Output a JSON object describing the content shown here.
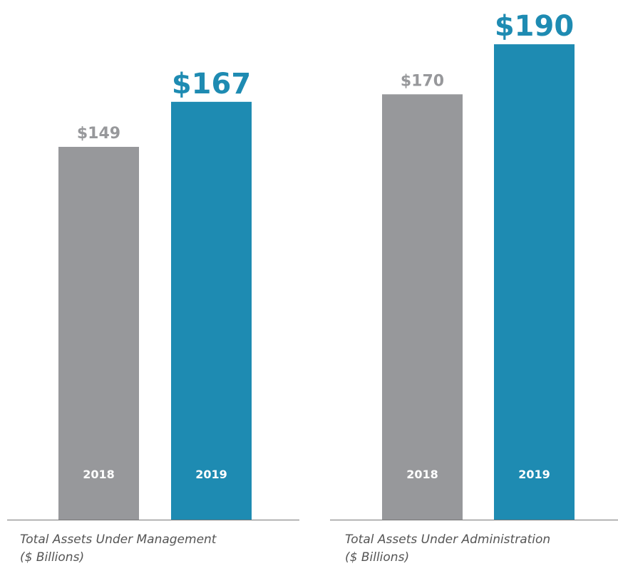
{
  "chart_data": [
    {
      "type": "bar",
      "title": "Total Assets Under Management",
      "subtitle": "($ Billions)",
      "categories": [
        "2018",
        "2019"
      ],
      "values": [
        149,
        167
      ],
      "value_labels": [
        "$149",
        "$167"
      ],
      "colors": [
        "#97989b",
        "#1e8bb2"
      ],
      "ylim": [
        0,
        200
      ]
    },
    {
      "type": "bar",
      "title": "Total Assets Under Administration",
      "subtitle": "($ Billions)",
      "categories": [
        "2018",
        "2019"
      ],
      "values": [
        170,
        190
      ],
      "value_labels": [
        "$170",
        "$190"
      ],
      "colors": [
        "#97989b",
        "#1e8bb2"
      ],
      "ylim": [
        0,
        200
      ]
    }
  ]
}
